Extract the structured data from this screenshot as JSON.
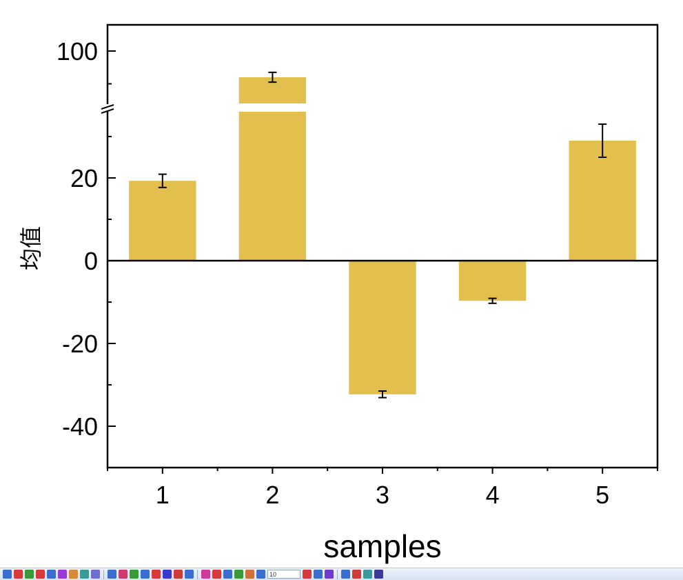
{
  "chart_data": {
    "type": "bar",
    "categories": [
      "1",
      "2",
      "3",
      "4",
      "5"
    ],
    "values": [
      19.3,
      92,
      -32.3,
      -9.7,
      29
    ],
    "errors": [
      1.6,
      1.5,
      0.8,
      0.6,
      4
    ],
    "xlabel": "samples",
    "ylabel": "均值",
    "axis_break": {
      "lower": [
        -50,
        36
      ],
      "upper": [
        84,
        108
      ]
    },
    "yticks": [
      100,
      20,
      0,
      -20,
      -40
    ],
    "bar_color": "#e3bf4d",
    "error_color": "#000000",
    "grid": false,
    "legend": "none"
  },
  "toolbar": {
    "field_value": "10",
    "icon_colors": [
      "#3a6fcf",
      "#d63a3a",
      "#3a9a3a",
      "#d63a3a",
      "#3a6fcf",
      "#9a3ad6",
      "#d68a3a",
      "#3a9a9a",
      "#6f6fcf",
      "#3a6fcf",
      "#cf3a6f",
      "#3a9a3a",
      "#3a6fcf",
      "#d63a3a",
      "#3a3acf",
      "#cf3a3a",
      "#3a6fcf",
      "#cf3a9a",
      "#d63a3a",
      "#3a6fcf",
      "#3a9a3a",
      "#cf6f3a",
      "#3a6fcf",
      "#d63a3a",
      "#3a6fcf",
      "#6f3acf",
      "#3a6fcf",
      "#cf3a3a",
      "#3a9a9a",
      "#3a3a9a"
    ]
  }
}
